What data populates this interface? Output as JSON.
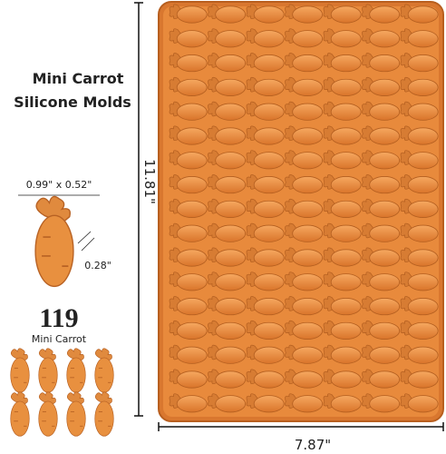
{
  "title_lines": [
    "Mini Carrot",
    "Silicone Molds"
  ],
  "size_label": "0.99\" x 0.52\"",
  "depth_label": "0.28\"",
  "count": "119",
  "count_caption": "Mini Carrot",
  "height_label": "11.81\"",
  "width_label": "7.87\""
}
